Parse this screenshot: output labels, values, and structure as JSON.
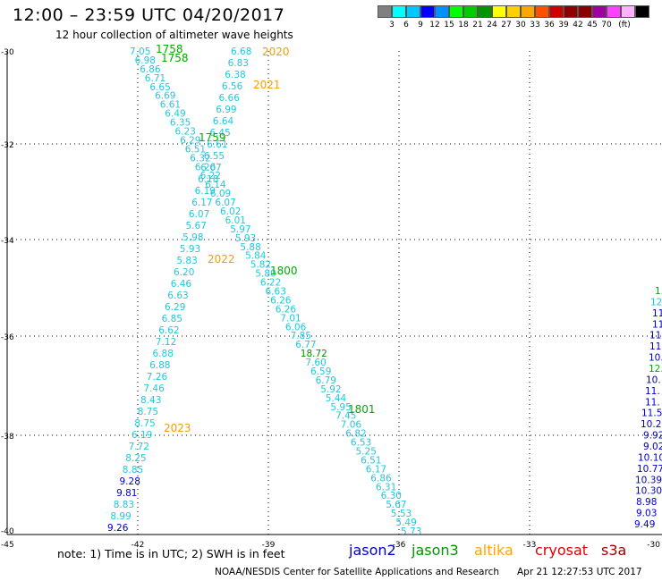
{
  "header": {
    "title": "12:00 – 23:59 UTC 04/20/2017",
    "subtitle": "12 hour collection of altimeter wave heights"
  },
  "legend": {
    "colors": [
      "#808080",
      "#00ffff",
      "#00c8ff",
      "#0000ff",
      "#0090ff",
      "#00ff00",
      "#00cc00",
      "#009600",
      "#ffff00",
      "#ffd000",
      "#ffa500",
      "#ff5000",
      "#d00000",
      "#900000",
      "#8b0000",
      "#a000a0",
      "#ff40ff",
      "#ffb0ff",
      "#000000"
    ],
    "labels": [
      "3",
      "6",
      "9",
      "12",
      "15",
      "18",
      "21",
      "24",
      "27",
      "30",
      "33",
      "36",
      "39",
      "42",
      "45",
      "70",
      "(ft)"
    ]
  },
  "map": {
    "lon_ticks": [
      "-45",
      "-42",
      "-39",
      "-36",
      "-33",
      "-30"
    ],
    "lat_ticks": [
      "-30",
      "-32",
      "-34",
      "-36",
      "-38",
      "-40"
    ],
    "track_a": [
      "7.05",
      "6.98",
      "6.86",
      "6.71",
      "6.65",
      "6.69",
      "6.61",
      "6.49",
      "6.35",
      "6.23",
      "6.29",
      "6.51",
      "6.32",
      "6.26",
      "6.22",
      "6.14",
      "6.09",
      "6.07",
      "6.02",
      "6.01",
      "5.97",
      "5.93",
      "5.88",
      "5.84",
      "5.82",
      "5.80",
      "6.22",
      "6.63",
      "6.26",
      "6.26",
      "7.01",
      "6.06",
      "7.85",
      "6.77",
      "18.72",
      "7.60",
      "6.59",
      "6.79",
      "5.92",
      "5.44",
      "5.95",
      "7.45",
      "7.06",
      "6.82",
      "6.53",
      "5.25",
      "6.51",
      "6.17",
      "6.86",
      "6.31",
      "6.30",
      "5.67",
      "5.53",
      "5.49",
      "5.73"
    ],
    "track_b": [
      "6.68",
      "6.83",
      "6.38",
      "6.56",
      "6.66",
      "6.99",
      "6.64",
      "6.45",
      "6.61",
      "6.55",
      "6.07",
      "6.18",
      "6.19",
      "6.17",
      "6.07",
      "5.67",
      "5.98",
      "5.93",
      "5.83",
      "6.20",
      "6.46",
      "6.63",
      "6.29",
      "6.85",
      "6.62",
      "7.12",
      "6.88",
      "6.88",
      "7.26",
      "7.46",
      "8.43",
      "8.75",
      "8.75",
      "6.19",
      "7.72",
      "8.25",
      "8.85",
      "9.28",
      "9.81",
      "8.83",
      "8.99",
      "9.26"
    ],
    "track_b_colors": [
      "c",
      "c",
      "c",
      "c",
      "c",
      "c",
      "c",
      "c",
      "c",
      "c",
      "c",
      "c",
      "c",
      "c",
      "c",
      "c",
      "c",
      "c",
      "c",
      "c",
      "c",
      "c",
      "c",
      "c",
      "c",
      "c",
      "c",
      "c",
      "c",
      "c",
      "c",
      "c",
      "c",
      "c",
      "c",
      "c",
      "c",
      "b",
      "b",
      "c",
      "c",
      "b"
    ],
    "track_c": [
      "1.",
      "12.",
      "11.",
      "11.",
      "11.",
      "11.",
      "10.",
      "12.",
      "10.",
      "11.",
      "11.",
      "11.5",
      "10.2",
      "9.92",
      "9.02",
      "10.10",
      "10.77",
      "10.39",
      "10.30",
      "8.98",
      "9.03",
      "9.49"
    ],
    "track_c_colors": [
      "g",
      "c",
      "b",
      "b",
      "b",
      "b",
      "b",
      "g",
      "b",
      "b",
      "b",
      "b",
      "b",
      "b",
      "b",
      "b",
      "b",
      "b",
      "b",
      "b",
      "b",
      "b"
    ],
    "time_labels": [
      {
        "text": "1758",
        "color": "g"
      },
      {
        "text": "1758",
        "color": "g"
      },
      {
        "text": "1759",
        "color": "g"
      },
      {
        "text": "1800",
        "color": "g"
      },
      {
        "text": "1801",
        "color": "g"
      },
      {
        "text": "2020",
        "color": "o"
      },
      {
        "text": "2021",
        "color": "o"
      },
      {
        "text": "2022",
        "color": "o"
      },
      {
        "text": "2023",
        "color": "o"
      }
    ]
  },
  "footer": {
    "note": "note:  1) Time is in UTC;  2) SWH is in feet",
    "satellites": [
      {
        "name": "jason2",
        "color": "#0000cc"
      },
      {
        "name": "jason3",
        "color": "#009600"
      },
      {
        "name": "altika",
        "color": "#ffa500"
      },
      {
        "name": "cryosat",
        "color": "#e00000"
      },
      {
        "name": "s3a",
        "color": "#a00000"
      }
    ],
    "credit": "NOAA/NESDIS Center for Satellite Applications and Research",
    "timestamp": "Apr 21 12:27:53 UTC 2017"
  }
}
